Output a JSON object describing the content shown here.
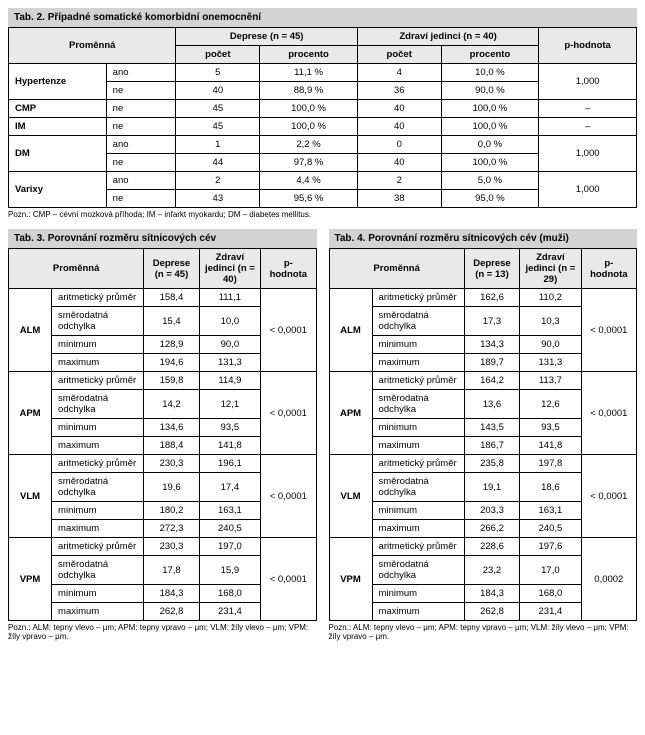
{
  "table2": {
    "title": "Tab. 2. Případné somatické komorbidní onemocnění",
    "headers": {
      "variable": "Proměnná",
      "group1": "Deprese (n = 45)",
      "group2": "Zdraví jedinci (n = 40)",
      "pval": "p-hodnota",
      "count": "počet",
      "percent": "procento"
    },
    "rows": [
      {
        "var": "Hypertenze",
        "sub": "ano",
        "c1": "5",
        "p1": "11,1 %",
        "c2": "4",
        "p2": "10,0 %",
        "pval": "1,000",
        "rowspan": 2
      },
      {
        "var": "",
        "sub": "ne",
        "c1": "40",
        "p1": "88,9 %",
        "c2": "36",
        "p2": "90,0 %",
        "pval": ""
      },
      {
        "var": "CMP",
        "sub": "ne",
        "c1": "45",
        "p1": "100,0 %",
        "c2": "40",
        "p2": "100,0 %",
        "pval": "–",
        "rowspan": 1
      },
      {
        "var": "IM",
        "sub": "ne",
        "c1": "45",
        "p1": "100,0 %",
        "c2": "40",
        "p2": "100,0 %",
        "pval": "–",
        "rowspan": 1
      },
      {
        "var": "DM",
        "sub": "ano",
        "c1": "1",
        "p1": "2,2 %",
        "c2": "0",
        "p2": "0,0 %",
        "pval": "1,000",
        "rowspan": 2
      },
      {
        "var": "",
        "sub": "ne",
        "c1": "44",
        "p1": "97,8 %",
        "c2": "40",
        "p2": "100,0 %",
        "pval": ""
      },
      {
        "var": "Varixy",
        "sub": "ano",
        "c1": "2",
        "p1": "4,4 %",
        "c2": "2",
        "p2": "5,0 %",
        "pval": "1,000",
        "rowspan": 2
      },
      {
        "var": "",
        "sub": "ne",
        "c1": "43",
        "p1": "95,6 %",
        "c2": "38",
        "p2": "95,0 %",
        "pval": ""
      }
    ],
    "footnote": "Pozn.: CMP – cévní mozková příhoda; IM – infarkt myokardu; DM – diabetes mellitus."
  },
  "table3": {
    "title": "Tab. 3. Porovnání rozměru sítnicových cév",
    "headers": {
      "variable": "Proměnná",
      "dep": "Deprese (n = 45)",
      "hc": "Zdraví jedinci (n = 40)",
      "pval": "p-hodnota"
    },
    "stats": [
      "aritmetický průměr",
      "směrodatná odchylka",
      "minimum",
      "maximum"
    ],
    "groups": [
      {
        "name": "ALM",
        "vals": [
          [
            "158,4",
            "111,1"
          ],
          [
            "15,4",
            "10,0"
          ],
          [
            "128,9",
            "90,0"
          ],
          [
            "194,6",
            "131,3"
          ]
        ],
        "p": "< 0,0001"
      },
      {
        "name": "APM",
        "vals": [
          [
            "159,8",
            "114,9"
          ],
          [
            "14,2",
            "12,1"
          ],
          [
            "134,6",
            "93,5"
          ],
          [
            "188,4",
            "141,8"
          ]
        ],
        "p": "< 0,0001"
      },
      {
        "name": "VLM",
        "vals": [
          [
            "230,3",
            "196,1"
          ],
          [
            "19,6",
            "17,4"
          ],
          [
            "180,2",
            "163,1"
          ],
          [
            "272,3",
            "240,5"
          ]
        ],
        "p": "< 0,0001"
      },
      {
        "name": "VPM",
        "vals": [
          [
            "230,3",
            "197,0"
          ],
          [
            "17,8",
            "15,9"
          ],
          [
            "184,3",
            "168,0"
          ],
          [
            "262,8",
            "231,4"
          ]
        ],
        "p": "< 0,0001"
      }
    ],
    "footnote": "Pozn.: ALM: tepny vlevo – μm; APM: tepny vpravo – μm; VLM: žíly vlevo – μm; VPM: žíly vpravo – μm."
  },
  "table4": {
    "title": "Tab. 4. Porovnání rozměru sítnicových cév (muži)",
    "headers": {
      "variable": "Proměnná",
      "dep": "Deprese (n = 13)",
      "hc": "Zdraví jedinci (n = 29)",
      "pval": "p-hodnota"
    },
    "stats": [
      "aritmetický průměr",
      "směrodatná odchylka",
      "minimum",
      "maximum"
    ],
    "groups": [
      {
        "name": "ALM",
        "vals": [
          [
            "162,6",
            "110,2"
          ],
          [
            "17,3",
            "10,3"
          ],
          [
            "134,3",
            "90,0"
          ],
          [
            "189,7",
            "131,3"
          ]
        ],
        "p": "< 0,0001"
      },
      {
        "name": "APM",
        "vals": [
          [
            "164,2",
            "113,7"
          ],
          [
            "13,6",
            "12,6"
          ],
          [
            "143,5",
            "93,5"
          ],
          [
            "186,7",
            "141,8"
          ]
        ],
        "p": "< 0,0001"
      },
      {
        "name": "VLM",
        "vals": [
          [
            "235,8",
            "197,8"
          ],
          [
            "19,1",
            "18,6"
          ],
          [
            "203,3",
            "163,1"
          ],
          [
            "266,2",
            "240,5"
          ]
        ],
        "p": "< 0,0001"
      },
      {
        "name": "VPM",
        "vals": [
          [
            "228,6",
            "197,6"
          ],
          [
            "23,2",
            "17,0"
          ],
          [
            "184,3",
            "168,0"
          ],
          [
            "262,8",
            "231,4"
          ]
        ],
        "p": "0,0002"
      }
    ],
    "footnote": "Pozn.: ALM: tepny vlevo – μm; APM: tepny vpravo – μm; VLM: žíly vlevo – μm; VPM: žíly vpravo – μm."
  }
}
